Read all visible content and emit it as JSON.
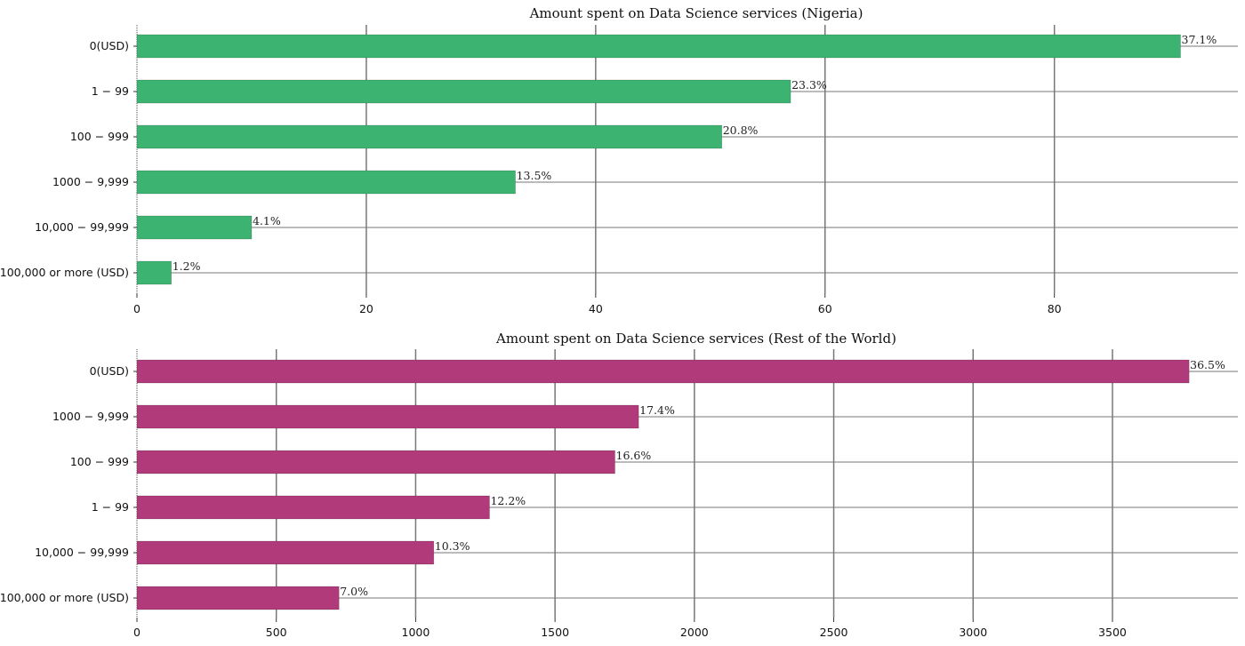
{
  "chart_data": [
    {
      "type": "bar",
      "orientation": "horizontal",
      "title": "Amount spent on Data Science services (Nigeria)",
      "xlabel": "",
      "ylabel": "",
      "color": "#3cb371",
      "xlim": [
        0,
        96
      ],
      "xticks": [
        0,
        20,
        40,
        60,
        80
      ],
      "grid": true,
      "categories": [
        "0(USD)",
        "1 − 99",
        "100 − 999",
        "1000 − 9,999",
        "10,000 − 99,999",
        "100,000 or more (USD)"
      ],
      "values": [
        91,
        57,
        51,
        33,
        10,
        3
      ],
      "labels": [
        "37.1%",
        "23.3%",
        "20.8%",
        "13.5%",
        "4.1%",
        "1.2%"
      ]
    },
    {
      "type": "bar",
      "orientation": "horizontal",
      "title": "Amount spent on Data Science services (Rest of the World)",
      "xlabel": "",
      "ylabel": "",
      "color": "#b03a7a",
      "xlim": [
        0,
        3950
      ],
      "xticks": [
        0,
        500,
        1000,
        1500,
        2000,
        2500,
        3000,
        3500
      ],
      "grid": true,
      "categories": [
        "0(USD)",
        "1000 − 9,999",
        "100 − 999",
        "1 − 99",
        "10,000 − 99,999",
        "100,000 or more (USD)"
      ],
      "values": [
        3775,
        1800,
        1715,
        1265,
        1065,
        725
      ],
      "labels": [
        "36.5%",
        "17.4%",
        "16.6%",
        "12.2%",
        "10.3%",
        "7.0%"
      ]
    }
  ]
}
